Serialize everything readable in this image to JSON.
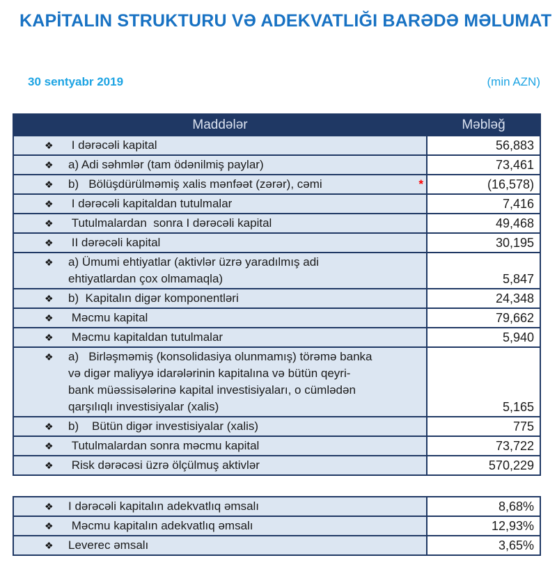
{
  "header": {
    "title": "KAPİTALIN STRUKTURU VƏ ADEKVATLIĞI BARƏDƏ MƏLUMAT",
    "date": "30 sentyabr 2019",
    "unit": "(min AZN)"
  },
  "icons": {
    "bullet": "❖"
  },
  "colors": {
    "accent_navy": "#1F3864",
    "row_blue": "#DCE6F2",
    "title_blue": "#1872C3",
    "cyan": "#1BA3E3",
    "asterisk_red": "#FF0000"
  },
  "table1": {
    "columns": {
      "item": "Maddələr",
      "amount": "Məbləğ"
    },
    "rows": [
      {
        "label": " I dərəcəli kapital",
        "amount": "56,883"
      },
      {
        "label": "a) Adi səhmlər (tam ödənilmiş paylar)",
        "amount": "73,461"
      },
      {
        "label": "b)   Bölüşdürülməmiş xalis mənfəət (zərər), cəmi",
        "suffix": "*",
        "amount": "(16,578)"
      },
      {
        "label": " I dərəcəli kapitaldan tutulmalar",
        "amount": "7,416"
      },
      {
        "label": " Tutulmalardan  sonra I dərəcəli kapital",
        "amount": "49,468"
      },
      {
        "label": " II dərəcəli kapital",
        "amount": "30,195"
      },
      {
        "label": "a) Ümumi ehtiyatlar (aktivlər üzrə yaradılmış adi\nehtiyatlardan çox olmamaqla)",
        "amount": "5,847"
      },
      {
        "label": "b)  Kapitalın digər komponentləri",
        "amount": "24,348"
      },
      {
        "label": " Məcmu kapital",
        "amount": "79,662"
      },
      {
        "label": " Məcmu kapitaldan tutulmalar",
        "amount": "5,940"
      },
      {
        "label": "a)   Birləşməmiş (konsolidasiya olunmamış) törəmə banka\nvə digər maliyyə idarələrinin kapitalına və bütün qeyri-\nbank müəssisələrinə kapital investisiyaları, o cümlədən\nqarşılıqlı investisiyalar (xalis)",
        "amount": "5,165"
      },
      {
        "label": "b)    Bütün digər investisiyalar (xalis)",
        "amount": "775"
      },
      {
        "label": " Tutulmalardan sonra məcmu kapital",
        "amount": "73,722"
      },
      {
        "label": " Risk dərəcəsi üzrə ölçülmuş aktivlər",
        "amount": "570,229"
      }
    ]
  },
  "table2": {
    "rows": [
      {
        "label": "I dərəcəli kapitalın adekvatlıq əmsalı",
        "amount": "8,68%"
      },
      {
        "label": " Məcmu kapitalın adekvatlıq əmsalı",
        "amount": "12,93%"
      },
      {
        "label": "Leverec əmsalı",
        "amount": "3,65%"
      }
    ]
  }
}
